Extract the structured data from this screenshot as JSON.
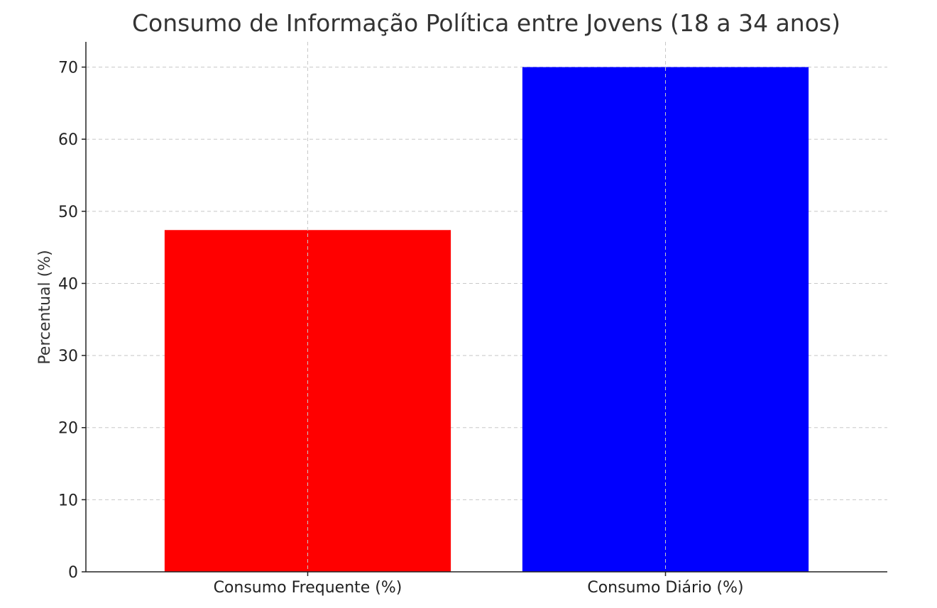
{
  "chart_data": {
    "type": "bar",
    "title": "Consumo de Informação Política entre Jovens (18 a 34 anos)",
    "xlabel": "",
    "ylabel": "Percentual (%)",
    "categories": [
      "Consumo Frequente (%)",
      "Consumo Diário (%)"
    ],
    "values": [
      47.4,
      70
    ],
    "colors": [
      "#ff0000",
      "#0000ff"
    ],
    "ylim": [
      0,
      73.5
    ],
    "yticks": [
      0,
      10,
      20,
      30,
      40,
      50,
      60,
      70
    ],
    "grid": true,
    "legend": "none"
  }
}
